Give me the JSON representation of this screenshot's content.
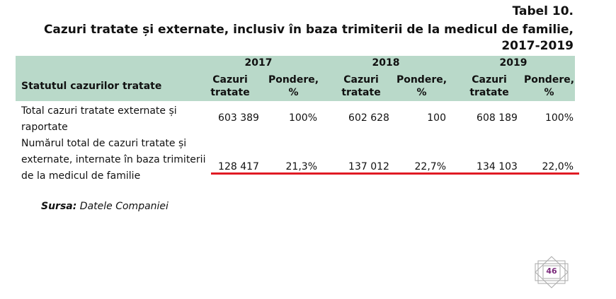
{
  "table_number": "Tabel 10.",
  "title_line1": "Cazuri tratate și externate, inclusiv în baza trimiterii de la medicul de familie,",
  "title_line2": "2017-2019",
  "header": {
    "first_col": "Statutul cazurilor tratate",
    "years": [
      "2017",
      "2018",
      "2019"
    ],
    "sub_cases": "Cazuri tratate",
    "sub_weight": "Pondere, %"
  },
  "rows": [
    {
      "label": "Total cazuri tratate externate și raportate",
      "values": [
        "603 389",
        "100%",
        "602 628",
        "100",
        "608 189",
        "100%"
      ]
    },
    {
      "label": "Numărul total de cazuri tratate și externate, internate în baza trimiterii de la medicul de familie",
      "values": [
        "128 417",
        "21,3%",
        "137 012",
        "22,7%",
        "134 103",
        "22,0%"
      ]
    }
  ],
  "source_label": "Sursa:",
  "source_text": " Datele Companiei",
  "page_number": "46",
  "colors": {
    "header_bg": "#b9d9c9",
    "underline": "#e01b24"
  }
}
